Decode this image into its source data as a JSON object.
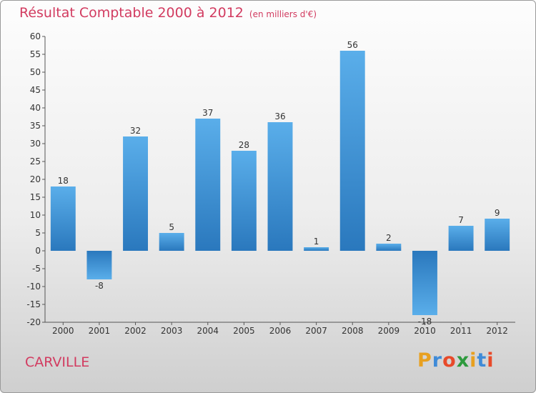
{
  "chart_data": {
    "type": "bar",
    "title": "Résultat Comptable 2000 à 2012",
    "unit_label": "(en milliers d'€)",
    "categories": [
      "2000",
      "2001",
      "2002",
      "2003",
      "2004",
      "2005",
      "2006",
      "2007",
      "2008",
      "2009",
      "2010",
      "2011",
      "2012"
    ],
    "values": [
      18,
      -8,
      32,
      5,
      37,
      28,
      36,
      1,
      56,
      2,
      -18,
      7,
      9
    ],
    "ylim": [
      -20,
      60
    ],
    "yticks": [
      -20,
      -15,
      -10,
      -5,
      0,
      5,
      10,
      15,
      20,
      25,
      30,
      35,
      40,
      45,
      50,
      55,
      60
    ],
    "xlabel": "",
    "ylabel": "",
    "grid": false,
    "bar_color": "#3a8fd6"
  },
  "footer": {
    "commune": "CARVILLE",
    "brand_letters": [
      "P",
      "r",
      "o",
      "x",
      "i",
      "t",
      "i"
    ],
    "brand_colors": [
      "#e8a020",
      "#3f8bd8",
      "#e84a2a",
      "#2e9a3e",
      "#e8a020",
      "#3f8bd8",
      "#e84a2a"
    ]
  }
}
